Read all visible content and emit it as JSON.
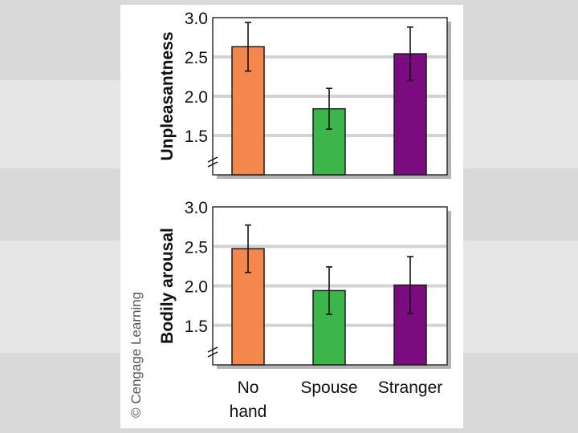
{
  "copyright": "© Cengage Learning",
  "colors": {
    "no_hand": "#f4874b",
    "spouse": "#3cb54a",
    "stranger": "#7b0c80",
    "gridline": "#d3d3d3",
    "plot_shadow": "#b3b3b3"
  },
  "chart_data": [
    {
      "type": "bar",
      "ylabel": "Unpleasantness",
      "categories": [
        "No hand",
        "Spouse",
        "Stranger"
      ],
      "values": [
        2.63,
        1.84,
        2.54
      ],
      "error": [
        0.31,
        0.26,
        0.34
      ],
      "yticks": [
        "3.0",
        "2.5",
        "2.0",
        "1.5"
      ],
      "ylim": [
        1.0,
        3.0
      ],
      "axis_break": true,
      "grid": true
    },
    {
      "type": "bar",
      "ylabel": "Bodily arousal",
      "categories": [
        "No hand",
        "Spouse",
        "Stranger"
      ],
      "values": [
        2.47,
        1.94,
        2.01
      ],
      "error": [
        0.3,
        0.3,
        0.36
      ],
      "yticks": [
        "3.0",
        "2.5",
        "2.0",
        "1.5"
      ],
      "ylim": [
        1.0,
        3.0
      ],
      "axis_break": true,
      "grid": true
    }
  ],
  "x_labels": [
    {
      "lines": [
        "No",
        "hand"
      ]
    },
    {
      "lines": [
        "Spouse"
      ]
    },
    {
      "lines": [
        "Stranger"
      ]
    }
  ]
}
